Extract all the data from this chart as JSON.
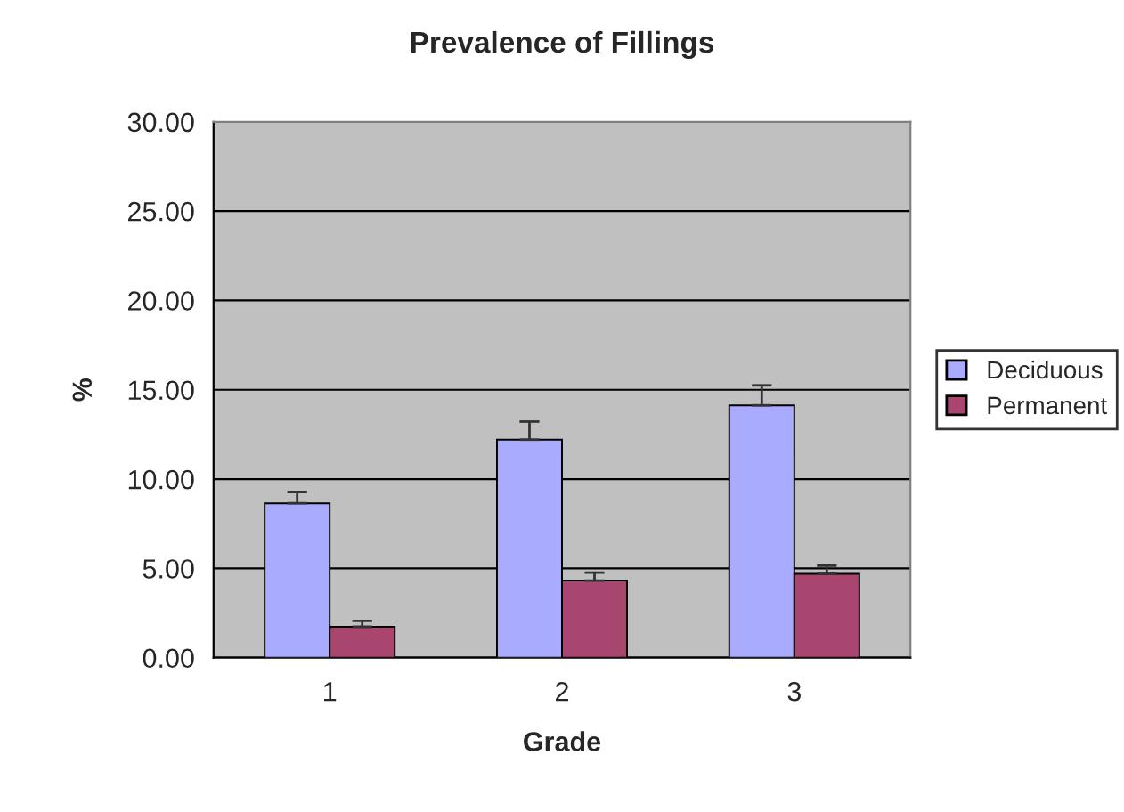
{
  "chart_data": {
    "type": "bar",
    "title": "Prevalence of Fillings",
    "xlabel": "Grade",
    "ylabel": "%",
    "categories": [
      "1",
      "2",
      "3"
    ],
    "series": [
      {
        "name": "Deciduous",
        "color": "#a9abff",
        "values": [
          8.65,
          12.21,
          14.13
        ],
        "errors": [
          [
            8.65,
            9.28
          ],
          [
            12.21,
            13.22
          ],
          [
            14.13,
            15.25
          ]
        ]
      },
      {
        "name": "Permanent",
        "color": "#a8466f",
        "values": [
          1.73,
          4.32,
          4.7
        ],
        "errors": [
          [
            1.73,
            2.06
          ],
          [
            4.32,
            4.77
          ],
          [
            4.7,
            5.15
          ]
        ]
      }
    ],
    "ylim": [
      0,
      30
    ],
    "yticks": [
      {
        "value": 0,
        "label": "0.00"
      },
      {
        "value": 5,
        "label": "5.00"
      },
      {
        "value": 10,
        "label": "10.00"
      },
      {
        "value": 15,
        "label": "15.00"
      },
      {
        "value": 20,
        "label": "20.00"
      },
      {
        "value": 25,
        "label": "25.00"
      },
      {
        "value": 30,
        "label": "30.00"
      }
    ],
    "grid": "y",
    "legend": "right"
  }
}
